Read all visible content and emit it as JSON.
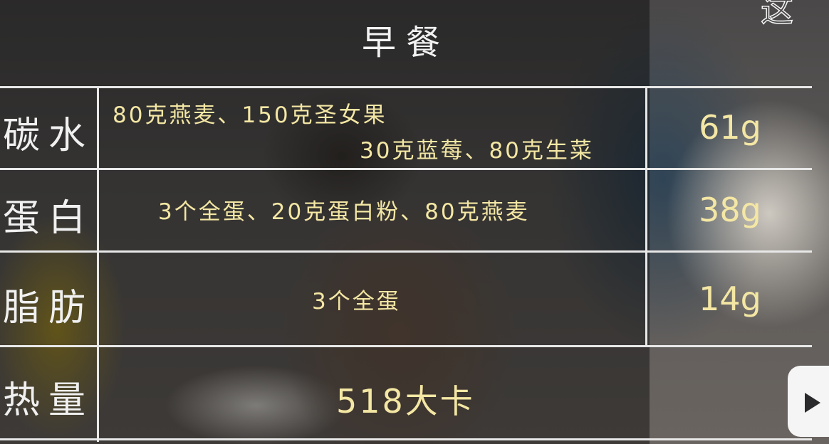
{
  "title": "早餐",
  "corner_text": "这",
  "rows": [
    {
      "label": "碳水",
      "desc_lines": [
        "80克燕麦、150克圣女果",
        "30克蓝莓、80克生菜"
      ],
      "value": "61g"
    },
    {
      "label": "蛋白",
      "desc_lines": [
        "3个全蛋、20克蛋白粉、80克燕麦"
      ],
      "value": "38g"
    },
    {
      "label": "脂肪",
      "desc_lines": [
        "3个全蛋"
      ],
      "value": "14g"
    },
    {
      "label": "热量",
      "desc_lines": [
        "518大卡"
      ],
      "value": ""
    }
  ],
  "icons": {
    "badge": "play-badge-icon"
  }
}
